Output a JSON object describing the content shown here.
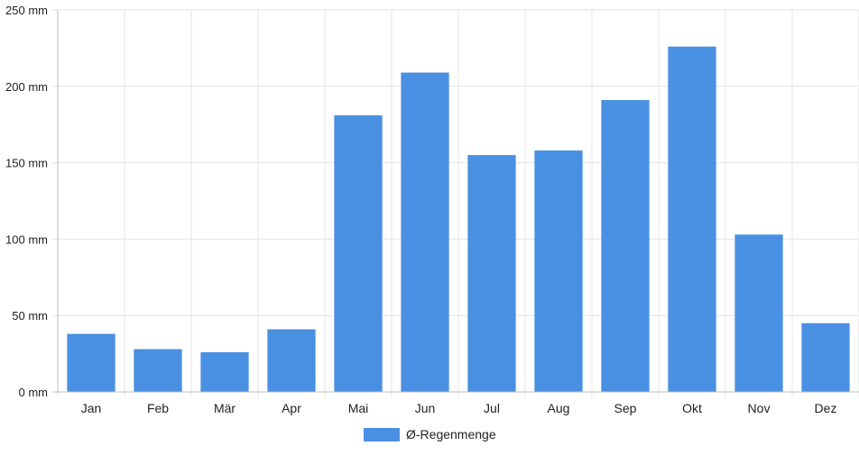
{
  "chart_data": {
    "type": "bar",
    "categories": [
      "Jan",
      "Feb",
      "Mär",
      "Apr",
      "Mai",
      "Jun",
      "Jul",
      "Aug",
      "Sep",
      "Okt",
      "Nov",
      "Dez"
    ],
    "series": [
      {
        "name": "Ø-Regenmenge",
        "values": [
          38,
          28,
          26,
          41,
          181,
          209,
          155,
          158,
          191,
          226,
          103,
          45
        ],
        "color": "#4a90e2"
      }
    ],
    "y_ticks": [
      "0 mm",
      "50 mm",
      "100 mm",
      "150 mm",
      "200 mm",
      "250 mm"
    ],
    "ylim": [
      0,
      250
    ],
    "y_unit": "mm",
    "grid": true,
    "legend_position": "bottom-center"
  }
}
